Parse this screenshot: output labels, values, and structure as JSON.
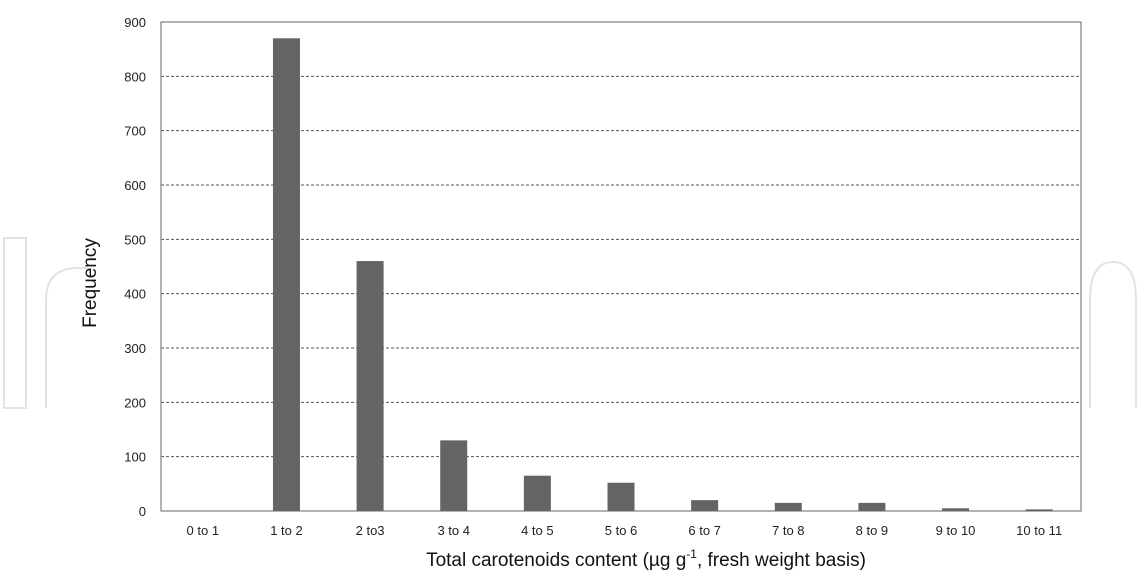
{
  "colors": {
    "bar": "#646464",
    "grid": "#555555",
    "frame": "#666666",
    "watermark": "#e3e3e3"
  },
  "chart_data": {
    "type": "bar",
    "categories": [
      "0 to 1",
      "1 to 2",
      "2 to3",
      "3 to 4",
      "4 to 5",
      "5 to 6",
      "6 to 7",
      "7 to 8",
      "8 to 9",
      "9 to 10",
      "10 to 11"
    ],
    "values": [
      0,
      870,
      460,
      130,
      65,
      52,
      20,
      15,
      15,
      5,
      3
    ],
    "ylim": [
      0,
      900
    ],
    "yticks": [
      0,
      100,
      200,
      300,
      400,
      500,
      600,
      700,
      800,
      900
    ],
    "grid": "horizontal dashed",
    "legend": "none",
    "title": "",
    "ylabel": "Frequency",
    "xlabel": {
      "before": "Total carotenoids content (µg g",
      "superscript": "-1",
      "after": ", fresh weight basis)"
    }
  }
}
